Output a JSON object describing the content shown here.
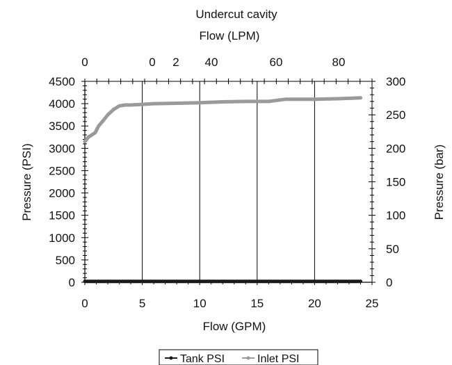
{
  "chart_data": {
    "type": "line",
    "title": "Undercut cavity",
    "xlabel": "Flow (GPM)",
    "ylabel": "Pressure (PSI)",
    "y2label": "Pressure (bar)",
    "top_axis_label": "Flow (LPM)",
    "xlim": [
      0,
      25
    ],
    "ylim": [
      0,
      4500
    ],
    "y2lim": [
      0,
      300
    ],
    "x_ticks": [
      "0",
      "5",
      "10",
      "15",
      "20",
      "25"
    ],
    "y_ticks": [
      "0",
      "500",
      "1000",
      "1500",
      "2000",
      "2500",
      "3000",
      "3500",
      "4000",
      "4500"
    ],
    "y2_ticks": [
      "0",
      "50",
      "100",
      "150",
      "200",
      "250",
      "300"
    ],
    "top_ticks": [
      "0",
      "0",
      "2",
      "40",
      "60",
      "80"
    ],
    "grid": true,
    "legend_position": "bottom",
    "series": [
      {
        "name": "Tank PSI",
        "color": "#1a1a1a",
        "x": [
          0,
          2,
          4,
          6,
          8,
          10,
          12,
          14,
          16,
          18,
          20,
          22,
          24
        ],
        "y": [
          20,
          20,
          20,
          20,
          20,
          20,
          20,
          20,
          20,
          20,
          20,
          20,
          20
        ]
      },
      {
        "name": "Inlet PSI",
        "color": "#9a9a9a",
        "x": [
          0,
          0.3,
          0.6,
          0.9,
          1.2,
          1.6,
          2.0,
          2.5,
          3.0,
          3.5,
          4.0,
          5.0,
          6.0,
          8.0,
          10.0,
          12.0,
          14.0,
          16.0,
          17.5,
          20.0,
          22.0,
          24.0
        ],
        "y": [
          3150,
          3250,
          3300,
          3350,
          3500,
          3620,
          3750,
          3870,
          3950,
          3970,
          3970,
          3985,
          4000,
          4010,
          4020,
          4040,
          4050,
          4050,
          4100,
          4100,
          4110,
          4130
        ]
      }
    ]
  }
}
